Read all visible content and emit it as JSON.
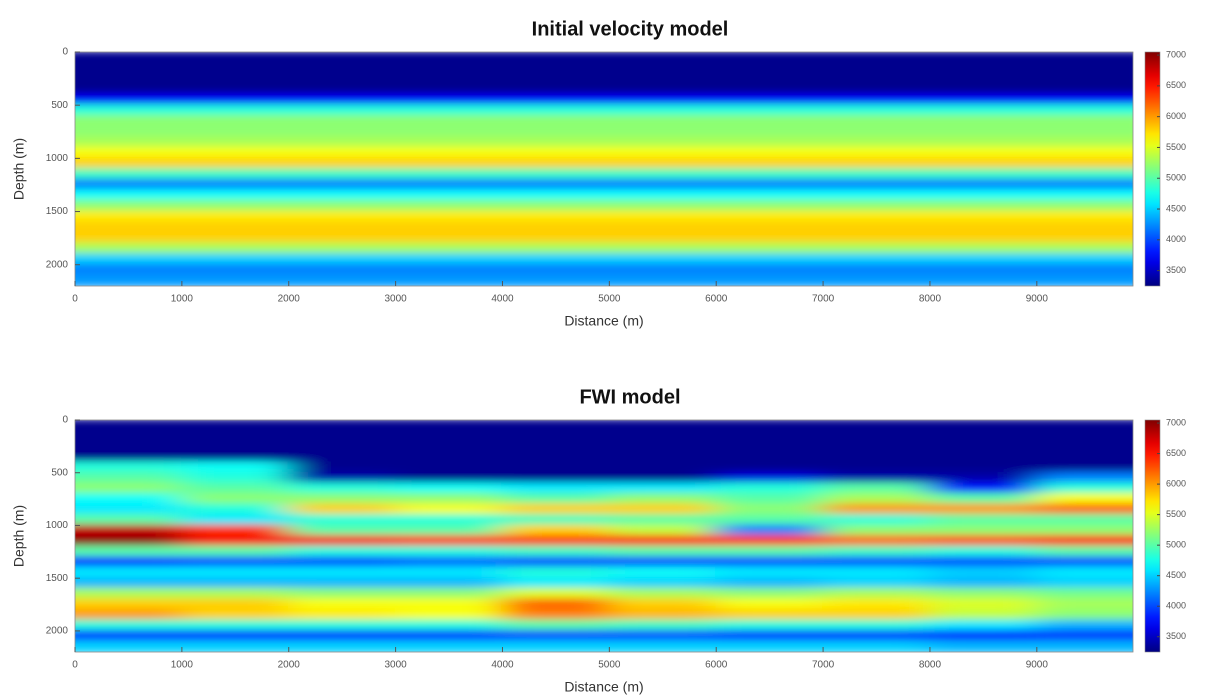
{
  "chart_data": [
    {
      "type": "heatmap",
      "title": "Initial velocity model",
      "xlabel": "Distance (m)",
      "ylabel": "Depth (m)",
      "colormap": "jet",
      "clim": [
        3250,
        7050
      ],
      "inverted_y": true,
      "xlim": [
        0,
        9900
      ],
      "xticks": [
        0,
        1000,
        2000,
        3000,
        4000,
        5000,
        6000,
        7000,
        8000,
        9000
      ],
      "ylim": [
        0,
        2200
      ],
      "yticks": [
        0,
        500,
        1000,
        1500,
        2000
      ],
      "cticks": [
        3500,
        4000,
        4500,
        5000,
        5500,
        6000,
        6500,
        7000
      ],
      "depths": [
        50,
        150,
        250,
        350,
        450,
        550,
        650,
        750,
        850,
        950,
        1050,
        1150,
        1250,
        1350,
        1450,
        1550,
        1650,
        1750,
        1850,
        1950,
        2050,
        2150
      ],
      "values": [
        3300,
        3300,
        3300,
        3300,
        3700,
        4800,
        5200,
        5200,
        5300,
        5600,
        5800,
        4900,
        4200,
        4700,
        5200,
        5700,
        5800,
        5800,
        5300,
        4500,
        4200,
        4300
      ]
    },
    {
      "type": "heatmap",
      "title": "FWI model",
      "xlabel": "Distance (m)",
      "ylabel": "Depth (m)",
      "colormap": "jet",
      "clim": [
        3250,
        7050
      ],
      "inverted_y": true,
      "xlim": [
        0,
        9900
      ],
      "xticks": [
        0,
        1000,
        2000,
        3000,
        4000,
        5000,
        6000,
        7000,
        8000,
        9000
      ],
      "ylim": [
        0,
        2200
      ],
      "yticks": [
        0,
        500,
        1000,
        1500,
        2000
      ],
      "cticks": [
        3500,
        4000,
        4500,
        5000,
        5500,
        6000,
        6500,
        7000
      ],
      "x": [
        500,
        1500,
        2500,
        3500,
        4500,
        5500,
        6500,
        7500,
        8500,
        9500
      ],
      "depths": [
        50,
        150,
        250,
        350,
        450,
        550,
        650,
        750,
        850,
        950,
        1050,
        1150,
        1250,
        1350,
        1450,
        1550,
        1650,
        1750,
        1850,
        1950,
        2050,
        2150
      ],
      "values": [
        [
          3300,
          3300,
          3300,
          3300,
          3300,
          3300,
          3300,
          3300,
          3300,
          3300
        ],
        [
          3300,
          3300,
          3300,
          3300,
          3300,
          3300,
          3300,
          3300,
          3300,
          3300
        ],
        [
          3300,
          3300,
          3300,
          3300,
          3300,
          3300,
          3300,
          3300,
          3300,
          3300
        ],
        [
          3300,
          3300,
          3300,
          3300,
          3300,
          3300,
          3300,
          3300,
          3300,
          3300
        ],
        [
          4800,
          4700,
          3300,
          3300,
          3300,
          3300,
          3300,
          3300,
          3300,
          3300
        ],
        [
          5000,
          4800,
          3400,
          3300,
          3300,
          3300,
          3600,
          3400,
          3400,
          4200
        ],
        [
          5200,
          5000,
          4800,
          4700,
          4600,
          4600,
          4800,
          5000,
          3800,
          4800
        ],
        [
          4700,
          5200,
          5200,
          5200,
          5000,
          5200,
          5000,
          5300,
          5000,
          5600
        ],
        [
          4600,
          4800,
          5800,
          5600,
          5800,
          5800,
          5200,
          6000,
          6000,
          6200
        ],
        [
          5000,
          4600,
          4800,
          4800,
          4900,
          5000,
          5000,
          4800,
          5000,
          5000
        ],
        [
          6800,
          6400,
          5000,
          5000,
          5800,
          5400,
          4200,
          5200,
          5200,
          5200
        ],
        [
          7000,
          6600,
          6600,
          6400,
          6400,
          6500,
          6400,
          6200,
          6300,
          6500
        ],
        [
          5000,
          5000,
          4800,
          4800,
          4900,
          5000,
          5000,
          4900,
          4800,
          5000
        ],
        [
          3900,
          4000,
          4000,
          4100,
          4000,
          4000,
          4000,
          4000,
          4000,
          4000
        ],
        [
          4600,
          4600,
          4600,
          4600,
          4800,
          4700,
          4600,
          4600,
          4500,
          4600
        ],
        [
          4400,
          4400,
          4400,
          4400,
          4600,
          4500,
          4400,
          4500,
          4400,
          4500
        ],
        [
          5300,
          5300,
          5200,
          5200,
          5500,
          5300,
          5200,
          5300,
          5200,
          5100
        ],
        [
          5800,
          5800,
          5600,
          5600,
          6200,
          5800,
          5600,
          5700,
          5500,
          5300
        ],
        [
          6000,
          5800,
          5700,
          5600,
          6100,
          5900,
          5800,
          5800,
          5400,
          5200
        ],
        [
          4800,
          4800,
          4800,
          4800,
          5000,
          4900,
          4800,
          4800,
          4600,
          4400
        ],
        [
          3900,
          3900,
          3900,
          3900,
          4000,
          4000,
          3900,
          3900,
          3800,
          3900
        ],
        [
          4500,
          4500,
          4500,
          4500,
          4500,
          4500,
          4500,
          4500,
          4400,
          4400
        ]
      ]
    }
  ]
}
